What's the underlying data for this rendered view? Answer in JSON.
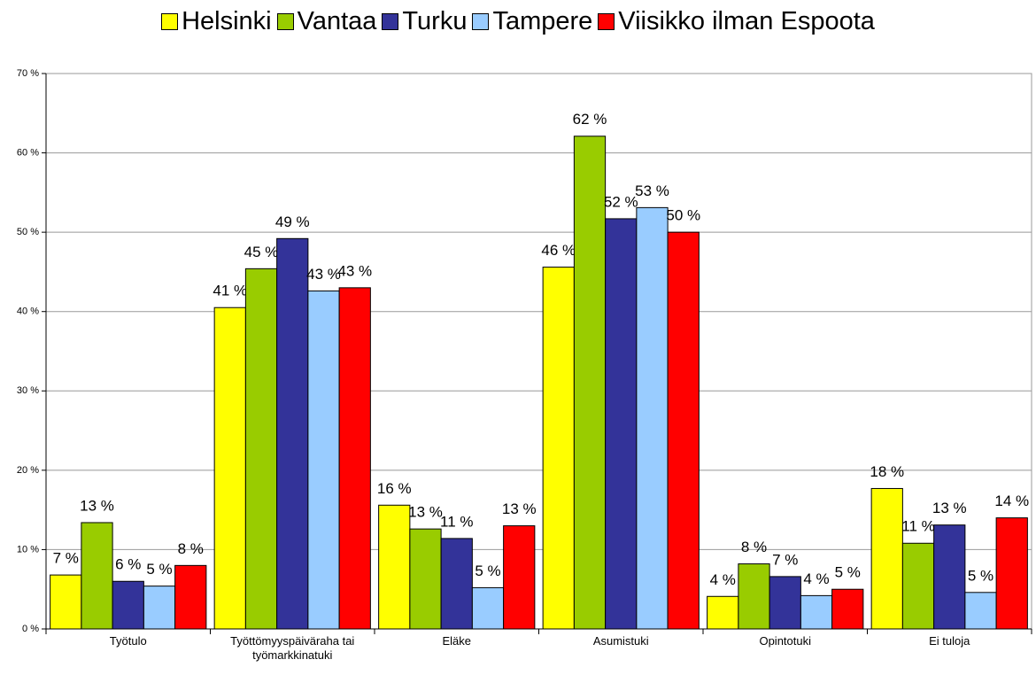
{
  "chart_data": {
    "type": "bar",
    "categories": [
      "Työtulo",
      "Työttömyyspäiväraha tai työmarkkinatuki",
      "Eläke",
      "Asumistuki",
      "Opintotuki",
      "Ei tuloja"
    ],
    "series": [
      {
        "name": "Helsinki",
        "color": "#ffff00",
        "values": [
          6.8,
          40.5,
          15.6,
          45.6,
          4.1,
          17.7
        ],
        "value_labels": [
          "7 %",
          "41 %",
          "16 %",
          "46 %",
          "4 %",
          "18 %"
        ]
      },
      {
        "name": "Vantaa",
        "color": "#99cc00",
        "values": [
          13.4,
          45.4,
          12.6,
          62.1,
          8.2,
          10.8
        ],
        "value_labels": [
          "13 %",
          "45 %",
          "13 %",
          "62 %",
          "8 %",
          "11 %"
        ]
      },
      {
        "name": "Turku",
        "color": "#333399",
        "values": [
          6.0,
          49.2,
          11.4,
          51.7,
          6.6,
          13.1
        ],
        "value_labels": [
          "6 %",
          "49 %",
          "11 %",
          "52 %",
          "7 %",
          "13 %"
        ]
      },
      {
        "name": "Tampere",
        "color": "#99ccff",
        "values": [
          5.4,
          42.6,
          5.2,
          53.1,
          4.2,
          4.6
        ],
        "value_labels": [
          "5 %",
          "43 %",
          "5 %",
          "53 %",
          "4 %",
          "5 %"
        ]
      },
      {
        "name": "Viisikko ilman Espoota",
        "color": "#ff0000",
        "values": [
          8.0,
          43.0,
          13.0,
          50.0,
          5.0,
          14.0
        ],
        "value_labels": [
          "8 %",
          "43 %",
          "13 %",
          "50 %",
          "5 %",
          "14 %"
        ]
      }
    ],
    "ylim": [
      0,
      70
    ],
    "yticks": [
      {
        "value": 0,
        "label": "0 %"
      },
      {
        "value": 10,
        "label": "10 %"
      },
      {
        "value": 20,
        "label": "20 %"
      },
      {
        "value": 30,
        "label": "30 %"
      },
      {
        "value": 40,
        "label": "40 %"
      },
      {
        "value": 50,
        "label": "50 %"
      },
      {
        "value": 60,
        "label": "60 %"
      },
      {
        "value": 70,
        "label": "70 %"
      }
    ],
    "grid": true,
    "legend": "top"
  }
}
